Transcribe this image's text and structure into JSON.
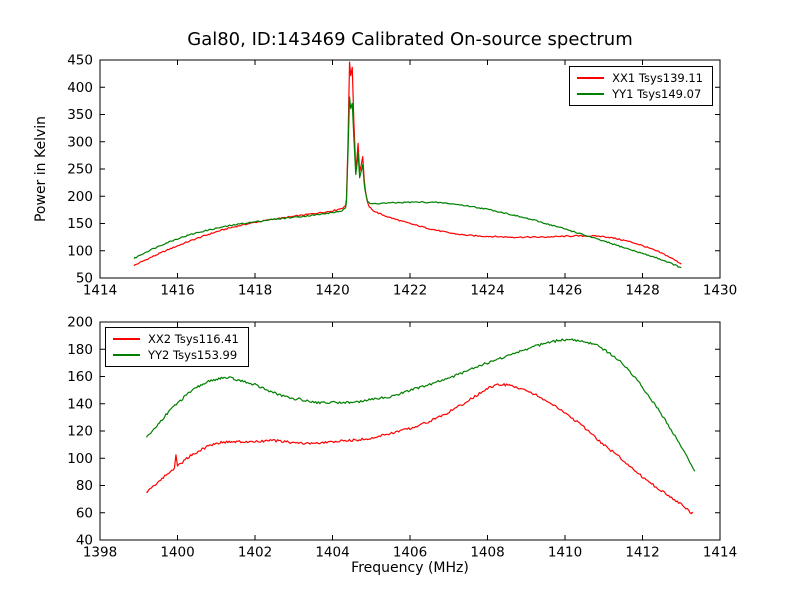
{
  "figure_title": "Gal80, ID:143469 Calibrated On-source spectrum",
  "colors": {
    "xx": "#ff0000",
    "yy": "#008000",
    "frame": "#000000",
    "background": "#ffffff"
  },
  "chart_data": [
    {
      "type": "line",
      "title": "Gal80, ID:143469 Calibrated On-source spectrum",
      "xlabel": "",
      "ylabel": "Power in Kelvin",
      "xlim": [
        1414,
        1430
      ],
      "ylim": [
        50,
        450
      ],
      "xticks": [
        1414,
        1416,
        1418,
        1420,
        1422,
        1424,
        1426,
        1428,
        1430
      ],
      "yticks": [
        50,
        100,
        150,
        200,
        250,
        300,
        350,
        400,
        450
      ],
      "grid": false,
      "legend_position": "upper right",
      "series": [
        {
          "name": "XX1 Tsys139.11",
          "color": "#ff0000",
          "noise": 1.2,
          "points": [
            [
              1414.88,
              73
            ],
            [
              1415.2,
              84
            ],
            [
              1415.6,
              97
            ],
            [
              1416.0,
              109
            ],
            [
              1416.4,
              120
            ],
            [
              1416.8,
              130
            ],
            [
              1417.2,
              139
            ],
            [
              1417.6,
              146
            ],
            [
              1418.0,
              152
            ],
            [
              1418.4,
              157
            ],
            [
              1418.8,
              161
            ],
            [
              1419.2,
              165
            ],
            [
              1419.6,
              169
            ],
            [
              1419.9,
              172
            ],
            [
              1420.15,
              176
            ],
            [
              1420.3,
              181
            ],
            [
              1420.36,
              195
            ],
            [
              1420.4,
              300
            ],
            [
              1420.44,
              447
            ],
            [
              1420.47,
              420
            ],
            [
              1420.51,
              437
            ],
            [
              1420.55,
              340
            ],
            [
              1420.6,
              250
            ],
            [
              1420.63,
              270
            ],
            [
              1420.66,
              297
            ],
            [
              1420.7,
              245
            ],
            [
              1420.74,
              258
            ],
            [
              1420.78,
              272
            ],
            [
              1420.82,
              230
            ],
            [
              1420.88,
              196
            ],
            [
              1420.95,
              181
            ],
            [
              1421.1,
              172
            ],
            [
              1421.4,
              163
            ],
            [
              1421.8,
              154
            ],
            [
              1422.2,
              146
            ],
            [
              1422.6,
              139
            ],
            [
              1423.0,
              133
            ],
            [
              1423.4,
              129
            ],
            [
              1423.8,
              127
            ],
            [
              1424.2,
              126
            ],
            [
              1424.6,
              125
            ],
            [
              1425.0,
              125
            ],
            [
              1425.4,
              125
            ],
            [
              1425.8,
              126
            ],
            [
              1426.2,
              127
            ],
            [
              1426.6,
              127
            ],
            [
              1427.0,
              126
            ],
            [
              1427.4,
              121
            ],
            [
              1427.8,
              114
            ],
            [
              1428.2,
              104
            ],
            [
              1428.6,
              92
            ],
            [
              1429.0,
              76
            ]
          ]
        },
        {
          "name": "YY1 Tsys149.07",
          "color": "#008000",
          "noise": 1.2,
          "points": [
            [
              1414.88,
              86
            ],
            [
              1415.2,
              98
            ],
            [
              1415.6,
              111
            ],
            [
              1416.0,
              122
            ],
            [
              1416.4,
              131
            ],
            [
              1416.8,
              138
            ],
            [
              1417.2,
              144
            ],
            [
              1417.6,
              149
            ],
            [
              1418.0,
              153
            ],
            [
              1418.4,
              157
            ],
            [
              1418.8,
              160
            ],
            [
              1419.2,
              163
            ],
            [
              1419.6,
              166
            ],
            [
              1419.9,
              169
            ],
            [
              1420.15,
              172
            ],
            [
              1420.3,
              176
            ],
            [
              1420.36,
              190
            ],
            [
              1420.4,
              280
            ],
            [
              1420.44,
              381
            ],
            [
              1420.47,
              360
            ],
            [
              1420.51,
              370
            ],
            [
              1420.55,
              310
            ],
            [
              1420.6,
              240
            ],
            [
              1420.63,
              258
            ],
            [
              1420.66,
              281
            ],
            [
              1420.7,
              235
            ],
            [
              1420.74,
              246
            ],
            [
              1420.78,
              259
            ],
            [
              1420.82,
              222
            ],
            [
              1420.88,
              198
            ],
            [
              1420.95,
              187
            ],
            [
              1421.2,
              187
            ],
            [
              1421.6,
              188
            ],
            [
              1422.0,
              189
            ],
            [
              1422.4,
              189
            ],
            [
              1422.8,
              188
            ],
            [
              1423.2,
              185
            ],
            [
              1423.6,
              181
            ],
            [
              1424.0,
              176
            ],
            [
              1424.4,
              170
            ],
            [
              1424.8,
              163
            ],
            [
              1425.2,
              156
            ],
            [
              1425.6,
              148
            ],
            [
              1426.0,
              140
            ],
            [
              1426.4,
              131
            ],
            [
              1426.8,
              122
            ],
            [
              1427.2,
              113
            ],
            [
              1427.6,
              104
            ],
            [
              1428.0,
              95
            ],
            [
              1428.4,
              86
            ],
            [
              1428.8,
              75
            ],
            [
              1429.0,
              68
            ]
          ]
        }
      ]
    },
    {
      "type": "line",
      "title": "",
      "xlabel": "Frequency (MHz)",
      "ylabel": "",
      "xlim": [
        1398,
        1414
      ],
      "ylim": [
        40,
        200
      ],
      "xticks": [
        1398,
        1400,
        1402,
        1404,
        1406,
        1408,
        1410,
        1412,
        1414
      ],
      "yticks": [
        40,
        60,
        80,
        100,
        120,
        140,
        160,
        180,
        200
      ],
      "grid": false,
      "legend_position": "upper left",
      "series": [
        {
          "name": "XX2 Tsys116.41",
          "color": "#ff0000",
          "noise": 0.9,
          "points": [
            [
              1399.2,
              75
            ],
            [
              1399.4,
              80
            ],
            [
              1399.6,
              85
            ],
            [
              1399.8,
              90
            ],
            [
              1399.92,
              93
            ],
            [
              1399.96,
              102
            ],
            [
              1400.0,
              95
            ],
            [
              1400.2,
              99
            ],
            [
              1400.4,
              103
            ],
            [
              1400.6,
              106
            ],
            [
              1400.8,
              109
            ],
            [
              1401.0,
              111
            ],
            [
              1401.3,
              112
            ],
            [
              1401.6,
              112
            ],
            [
              1402.0,
              112
            ],
            [
              1402.4,
              113
            ],
            [
              1402.8,
              112
            ],
            [
              1403.2,
              111
            ],
            [
              1403.6,
              111
            ],
            [
              1404.0,
              112
            ],
            [
              1404.4,
              113
            ],
            [
              1404.8,
              114
            ],
            [
              1405.2,
              116
            ],
            [
              1405.6,
              119
            ],
            [
              1406.0,
              122
            ],
            [
              1406.4,
              126
            ],
            [
              1406.8,
              131
            ],
            [
              1407.2,
              137
            ],
            [
              1407.6,
              144
            ],
            [
              1408.0,
              151
            ],
            [
              1408.3,
              154
            ],
            [
              1408.6,
              153
            ],
            [
              1409.0,
              150
            ],
            [
              1409.4,
              144
            ],
            [
              1409.8,
              137
            ],
            [
              1410.2,
              129
            ],
            [
              1410.6,
              120
            ],
            [
              1411.0,
              110
            ],
            [
              1411.4,
              101
            ],
            [
              1411.8,
              91
            ],
            [
              1412.2,
              82
            ],
            [
              1412.6,
              74
            ],
            [
              1413.0,
              66
            ],
            [
              1413.3,
              59
            ]
          ]
        },
        {
          "name": "YY2 Tsys153.99",
          "color": "#008000",
          "noise": 0.9,
          "points": [
            [
              1399.2,
              115
            ],
            [
              1399.5,
              125
            ],
            [
              1399.8,
              135
            ],
            [
              1400.1,
              143
            ],
            [
              1400.4,
              150
            ],
            [
              1400.7,
              155
            ],
            [
              1401.0,
              158
            ],
            [
              1401.3,
              159
            ],
            [
              1401.6,
              157
            ],
            [
              1402.0,
              154
            ],
            [
              1402.4,
              149
            ],
            [
              1402.8,
              145
            ],
            [
              1403.2,
              143
            ],
            [
              1403.6,
              141
            ],
            [
              1404.0,
              141
            ],
            [
              1404.4,
              141
            ],
            [
              1404.8,
              142
            ],
            [
              1405.2,
              144
            ],
            [
              1405.6,
              146
            ],
            [
              1406.0,
              150
            ],
            [
              1406.4,
              153
            ],
            [
              1406.8,
              157
            ],
            [
              1407.2,
              161
            ],
            [
              1407.6,
              166
            ],
            [
              1408.0,
              170
            ],
            [
              1408.4,
              174
            ],
            [
              1408.8,
              178
            ],
            [
              1409.2,
              182
            ],
            [
              1409.6,
              185
            ],
            [
              1410.0,
              187
            ],
            [
              1410.4,
              186
            ],
            [
              1410.8,
              183
            ],
            [
              1411.2,
              176
            ],
            [
              1411.6,
              166
            ],
            [
              1412.0,
              152
            ],
            [
              1412.4,
              136
            ],
            [
              1412.8,
              118
            ],
            [
              1413.1,
              103
            ],
            [
              1413.35,
              90
            ]
          ]
        }
      ]
    }
  ]
}
